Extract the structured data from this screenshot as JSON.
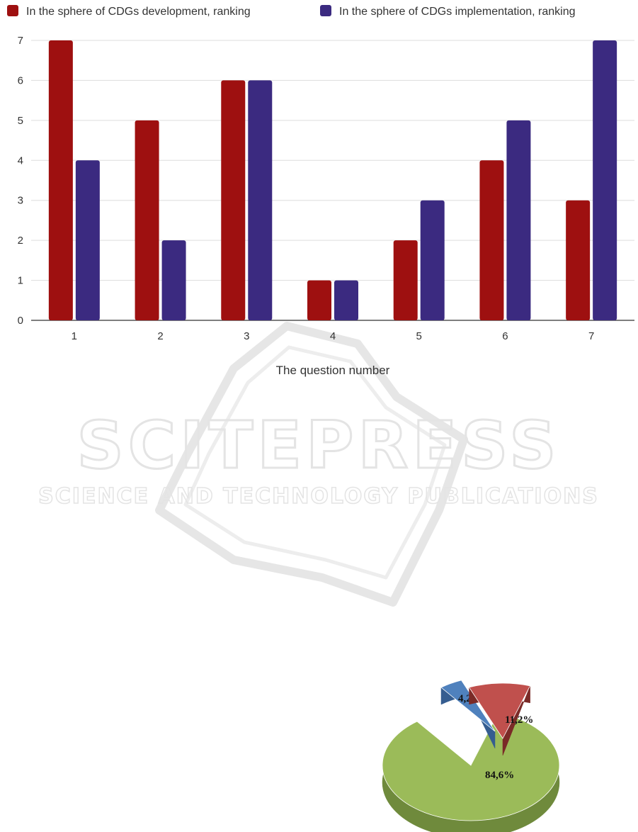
{
  "watermark": {
    "title": "SCITEPRESS",
    "subtitle": "SCIENCE AND TECHNOLOGY PUBLICATIONS"
  },
  "chart_data": [
    {
      "type": "bar",
      "xlabel": "The question number",
      "ylabel": "",
      "ylim": [
        0,
        7
      ],
      "yticks": [
        0,
        1,
        2,
        3,
        4,
        5,
        6,
        7
      ],
      "grid": true,
      "legend": "top",
      "categories": [
        "1",
        "2",
        "3",
        "4",
        "5",
        "6",
        "7"
      ],
      "series": [
        {
          "name": "In the sphere of CDGs development, ranking",
          "color": "#9e1010",
          "values": [
            7,
            5,
            6,
            1,
            2,
            4,
            3
          ]
        },
        {
          "name": "In the sphere of CDGs implementation, ranking",
          "color": "#3b2a80",
          "values": [
            4,
            2,
            6,
            1,
            3,
            5,
            7
          ]
        }
      ]
    },
    {
      "type": "pie",
      "style": "3d-exploded",
      "labels": [
        "84,6%",
        "4,2%",
        "11,2%"
      ],
      "values": [
        84.6,
        4.2,
        11.2
      ],
      "colors": [
        "#9bbb59",
        "#4f81bd",
        "#c0504d"
      ],
      "side_colors": [
        "#6f8a3c",
        "#355d90",
        "#7a2a27"
      ]
    }
  ]
}
